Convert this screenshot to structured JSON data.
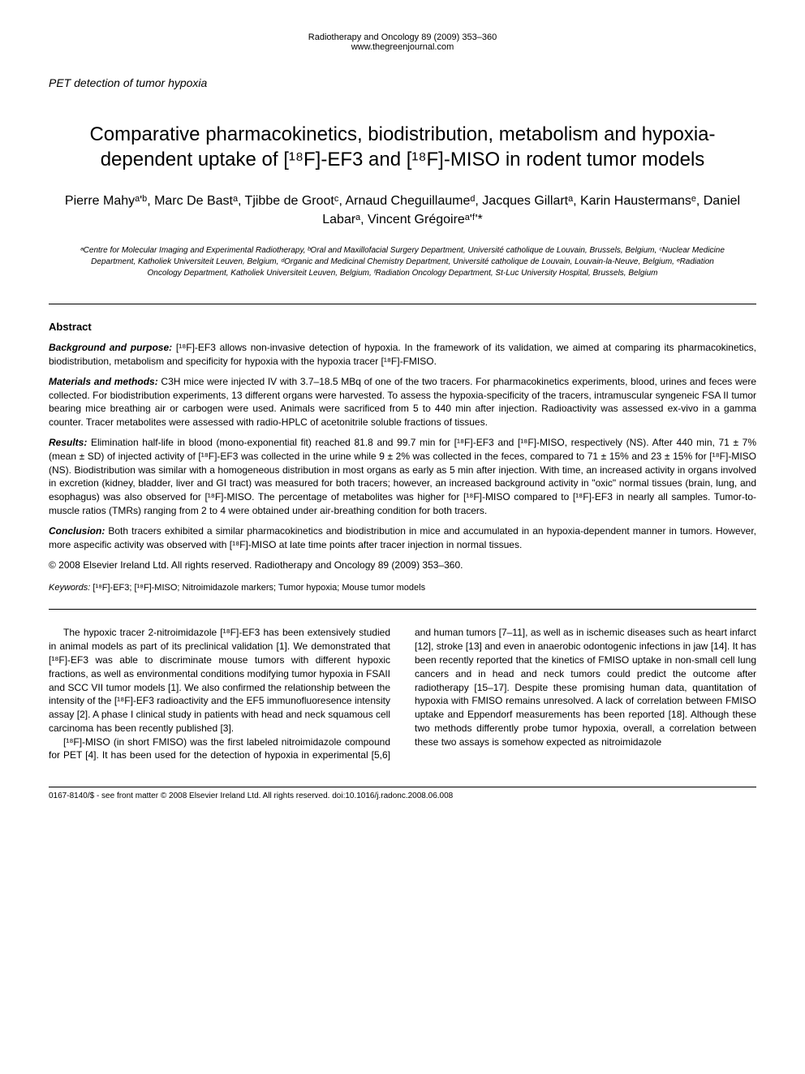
{
  "journal": {
    "citation": "Radiotherapy and Oncology 89 (2009) 353–360",
    "url": "www.thegreenjournal.com"
  },
  "section_label": "PET detection of tumor hypoxia",
  "title": "Comparative pharmacokinetics, biodistribution, metabolism and hypoxia-dependent uptake of [¹⁸F]-EF3 and [¹⁸F]-MISO in rodent tumor models",
  "authors": "Pierre Mahyᵃ'ᵇ, Marc De Bastᵃ, Tjibbe de Grootᶜ, Arnaud Cheguillaumeᵈ, Jacques Gillartᵃ, Karin Haustermansᵉ, Daniel Labarᵃ, Vincent Grégoireᵃ'ᶠ'*",
  "affiliations": "ᵃCentre for Molecular Imaging and Experimental Radiotherapy, ᵇOral and Maxillofacial Surgery Department, Université catholique de Louvain, Brussels, Belgium, ᶜNuclear Medicine Department, Katholiek Universiteit Leuven, Belgium, ᵈOrganic and Medicinal Chemistry Department, Université catholique de Louvain, Louvain-la-Neuve, Belgium, ᵉRadiation Oncology Department, Katholiek Universiteit Leuven, Belgium, ᶠRadiation Oncology Department, St-Luc University Hospital, Brussels, Belgium",
  "abstract": {
    "heading": "Abstract",
    "background_label": "Background and purpose:",
    "background": " [¹⁸F]-EF3 allows non-invasive detection of hypoxia. In the framework of its validation, we aimed at comparing its pharmacokinetics, biodistribution, metabolism and specificity for hypoxia with the hypoxia tracer [¹⁸F]-FMISO.",
    "methods_label": "Materials and methods:",
    "methods": " C3H mice were injected IV with 3.7–18.5 MBq of one of the two tracers. For pharmacokinetics experiments, blood, urines and feces were collected. For biodistribution experiments, 13 different organs were harvested. To assess the hypoxia-specificity of the tracers, intramuscular syngeneic FSA II tumor bearing mice breathing air or carbogen were used. Animals were sacrificed from 5 to 440 min after injection. Radioactivity was assessed ex-vivo in a gamma counter. Tracer metabolites were assessed with radio-HPLC of acetonitrile soluble fractions of tissues.",
    "results_label": "Results:",
    "results": " Elimination half-life in blood (mono-exponential fit) reached 81.8 and 99.7 min for [¹⁸F]-EF3 and [¹⁸F]-MISO, respectively (NS). After 440 min, 71 ± 7% (mean ± SD) of injected activity of [¹⁸F]-EF3 was collected in the urine while 9 ± 2% was collected in the feces, compared to 71 ± 15% and 23 ± 15% for [¹⁸F]-MISO (NS). Biodistribution was similar with a homogeneous distribution in most organs as early as 5 min after injection. With time, an increased activity in organs involved in excretion (kidney, bladder, liver and GI tract) was measured for both tracers; however, an increased background activity in \"oxic\" normal tissues (brain, lung, and esophagus) was also observed for [¹⁸F]-MISO. The percentage of metabolites was higher for [¹⁸F]-MISO compared to [¹⁸F]-EF3 in nearly all samples. Tumor-to-muscle ratios (TMRs) ranging from 2 to 4 were obtained under air-breathing condition for both tracers.",
    "conclusion_label": "Conclusion:",
    "conclusion": " Both tracers exhibited a similar pharmacokinetics and biodistribution in mice and accumulated in an hypoxia-dependent manner in tumors. However, more aspecific activity was observed with [¹⁸F]-MISO at late time points after tracer injection in normal tissues."
  },
  "copyright": "© 2008 Elsevier Ireland Ltd. All rights reserved. Radiotherapy and Oncology 89 (2009) 353–360.",
  "keywords": {
    "label": "Keywords:",
    "text": " [¹⁸F]-EF3; [¹⁸F]-MISO; Nitroimidazole markers; Tumor hypoxia; Mouse tumor models"
  },
  "body": {
    "para1": "The hypoxic tracer 2-nitroimidazole [¹⁸F]-EF3 has been extensively studied in animal models as part of its preclinical validation [1]. We demonstrated that [¹⁸F]-EF3 was able to discriminate mouse tumors with different hypoxic fractions, as well as environmental conditions modifying tumor hypoxia in FSAII and SCC VII tumor models [1]. We also confirmed the relationship between the intensity of the [¹⁸F]-EF3 radioactivity and the EF5 immunofluoresence intensity assay [2]. A phase I clinical study in patients with head and neck squamous cell carcinoma has been recently published [3].",
    "para2": "[¹⁸F]-MISO (in short FMISO) was the first labeled nitroimidazole compound for PET [4]. It has been used for the detection of hypoxia in experimental [5,6] and human tumors [7–11], as well as in ischemic diseases such as heart infarct [12], stroke [13] and even in anaerobic odontogenic infections in jaw [14]. It has been recently reported that the kinetics of FMISO uptake in non-small cell lung cancers and in head and neck tumors could predict the outcome after radiotherapy [15–17]. Despite these promising human data, quantitation of hypoxia with FMISO remains unresolved. A lack of correlation between FMISO uptake and Eppendorf measurements has been reported [18]. Although these two methods differently probe tumor hypoxia, overall, a correlation between these two assays is somehow expected as nitroimidazole"
  },
  "footer": "0167-8140/$ - see front matter © 2008 Elsevier Ireland Ltd. All rights reserved. doi:10.1016/j.radonc.2008.06.008"
}
